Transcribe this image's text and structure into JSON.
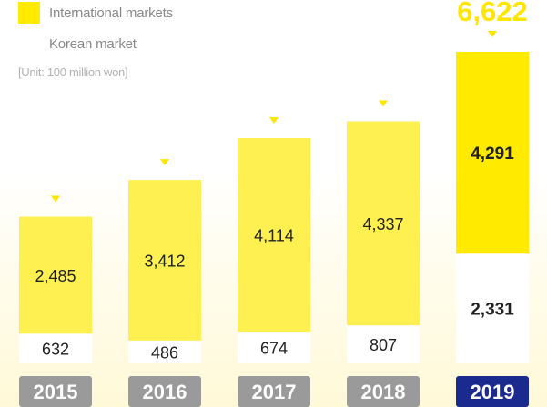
{
  "legend": {
    "international_label": "International markets",
    "korean_label": "Korean market"
  },
  "unit_label": "[Unit: 100 million won]",
  "colors": {
    "international": "#fdf050",
    "international_highlight": "#ffea00",
    "korean": "#ffffff",
    "arrow": "#ffe500",
    "total_label": "#ffe500",
    "year_badge": "#9a9a9a",
    "year_badge_highlight": "#1b2a8f",
    "label_text": "#222222"
  },
  "chart_data": {
    "type": "bar",
    "stacked": true,
    "categories": [
      "2015",
      "2016",
      "2017",
      "2018",
      "2019"
    ],
    "series": [
      {
        "name": "Korean market",
        "values": [
          632,
          486,
          674,
          807,
          2331
        ]
      },
      {
        "name": "International markets",
        "values": [
          2485,
          3412,
          4114,
          4337,
          4291
        ]
      }
    ],
    "value_labels": {
      "korean": [
        "632",
        "486",
        "674",
        "807",
        "2,331"
      ],
      "international": [
        "2,485",
        "3,412",
        "4,114",
        "4,337",
        "4,291"
      ]
    },
    "totals": [
      null,
      null,
      null,
      null,
      6622
    ],
    "total_labels": [
      "",
      "",
      "",
      "",
      "6,622"
    ],
    "highlight_index": 4,
    "ylabel": "",
    "xlabel": ""
  }
}
